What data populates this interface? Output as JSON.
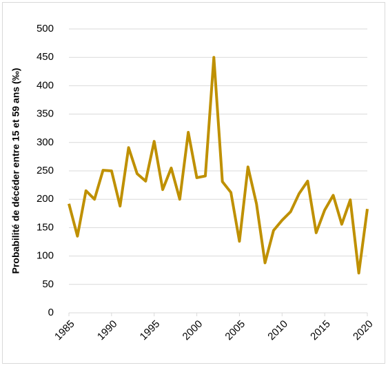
{
  "chart_data": {
    "type": "line",
    "y_label": "Probabilité de décéder entre 15 et 59 ans (‰)",
    "x": [
      1985,
      1986,
      1987,
      1988,
      1989,
      1990,
      1991,
      1992,
      1993,
      1994,
      1995,
      1996,
      1997,
      1998,
      1999,
      2000,
      2001,
      2002,
      2003,
      2004,
      2005,
      2006,
      2007,
      2008,
      2009,
      2010,
      2011,
      2012,
      2013,
      2014,
      2015,
      2016,
      2017,
      2018,
      2019,
      2020
    ],
    "series": [
      {
        "color": "#bf9000",
        "values": [
          192,
          135,
          215,
          200,
          251,
          250,
          188,
          291,
          245,
          232,
          302,
          217,
          255,
          200,
          318,
          238,
          241,
          450,
          231,
          212,
          126,
          257,
          192,
          88,
          145,
          163,
          178,
          210,
          232,
          141,
          181,
          207,
          156,
          199,
          70,
          183
        ]
      }
    ],
    "xlim": [
      1985,
      2020
    ],
    "xticks": [
      1985,
      1990,
      1995,
      2000,
      2005,
      2010,
      2015,
      2020
    ],
    "ylim": [
      0,
      500
    ],
    "yticks": [
      0,
      50,
      100,
      150,
      200,
      250,
      300,
      350,
      400,
      450,
      500
    ],
    "grid": true
  }
}
